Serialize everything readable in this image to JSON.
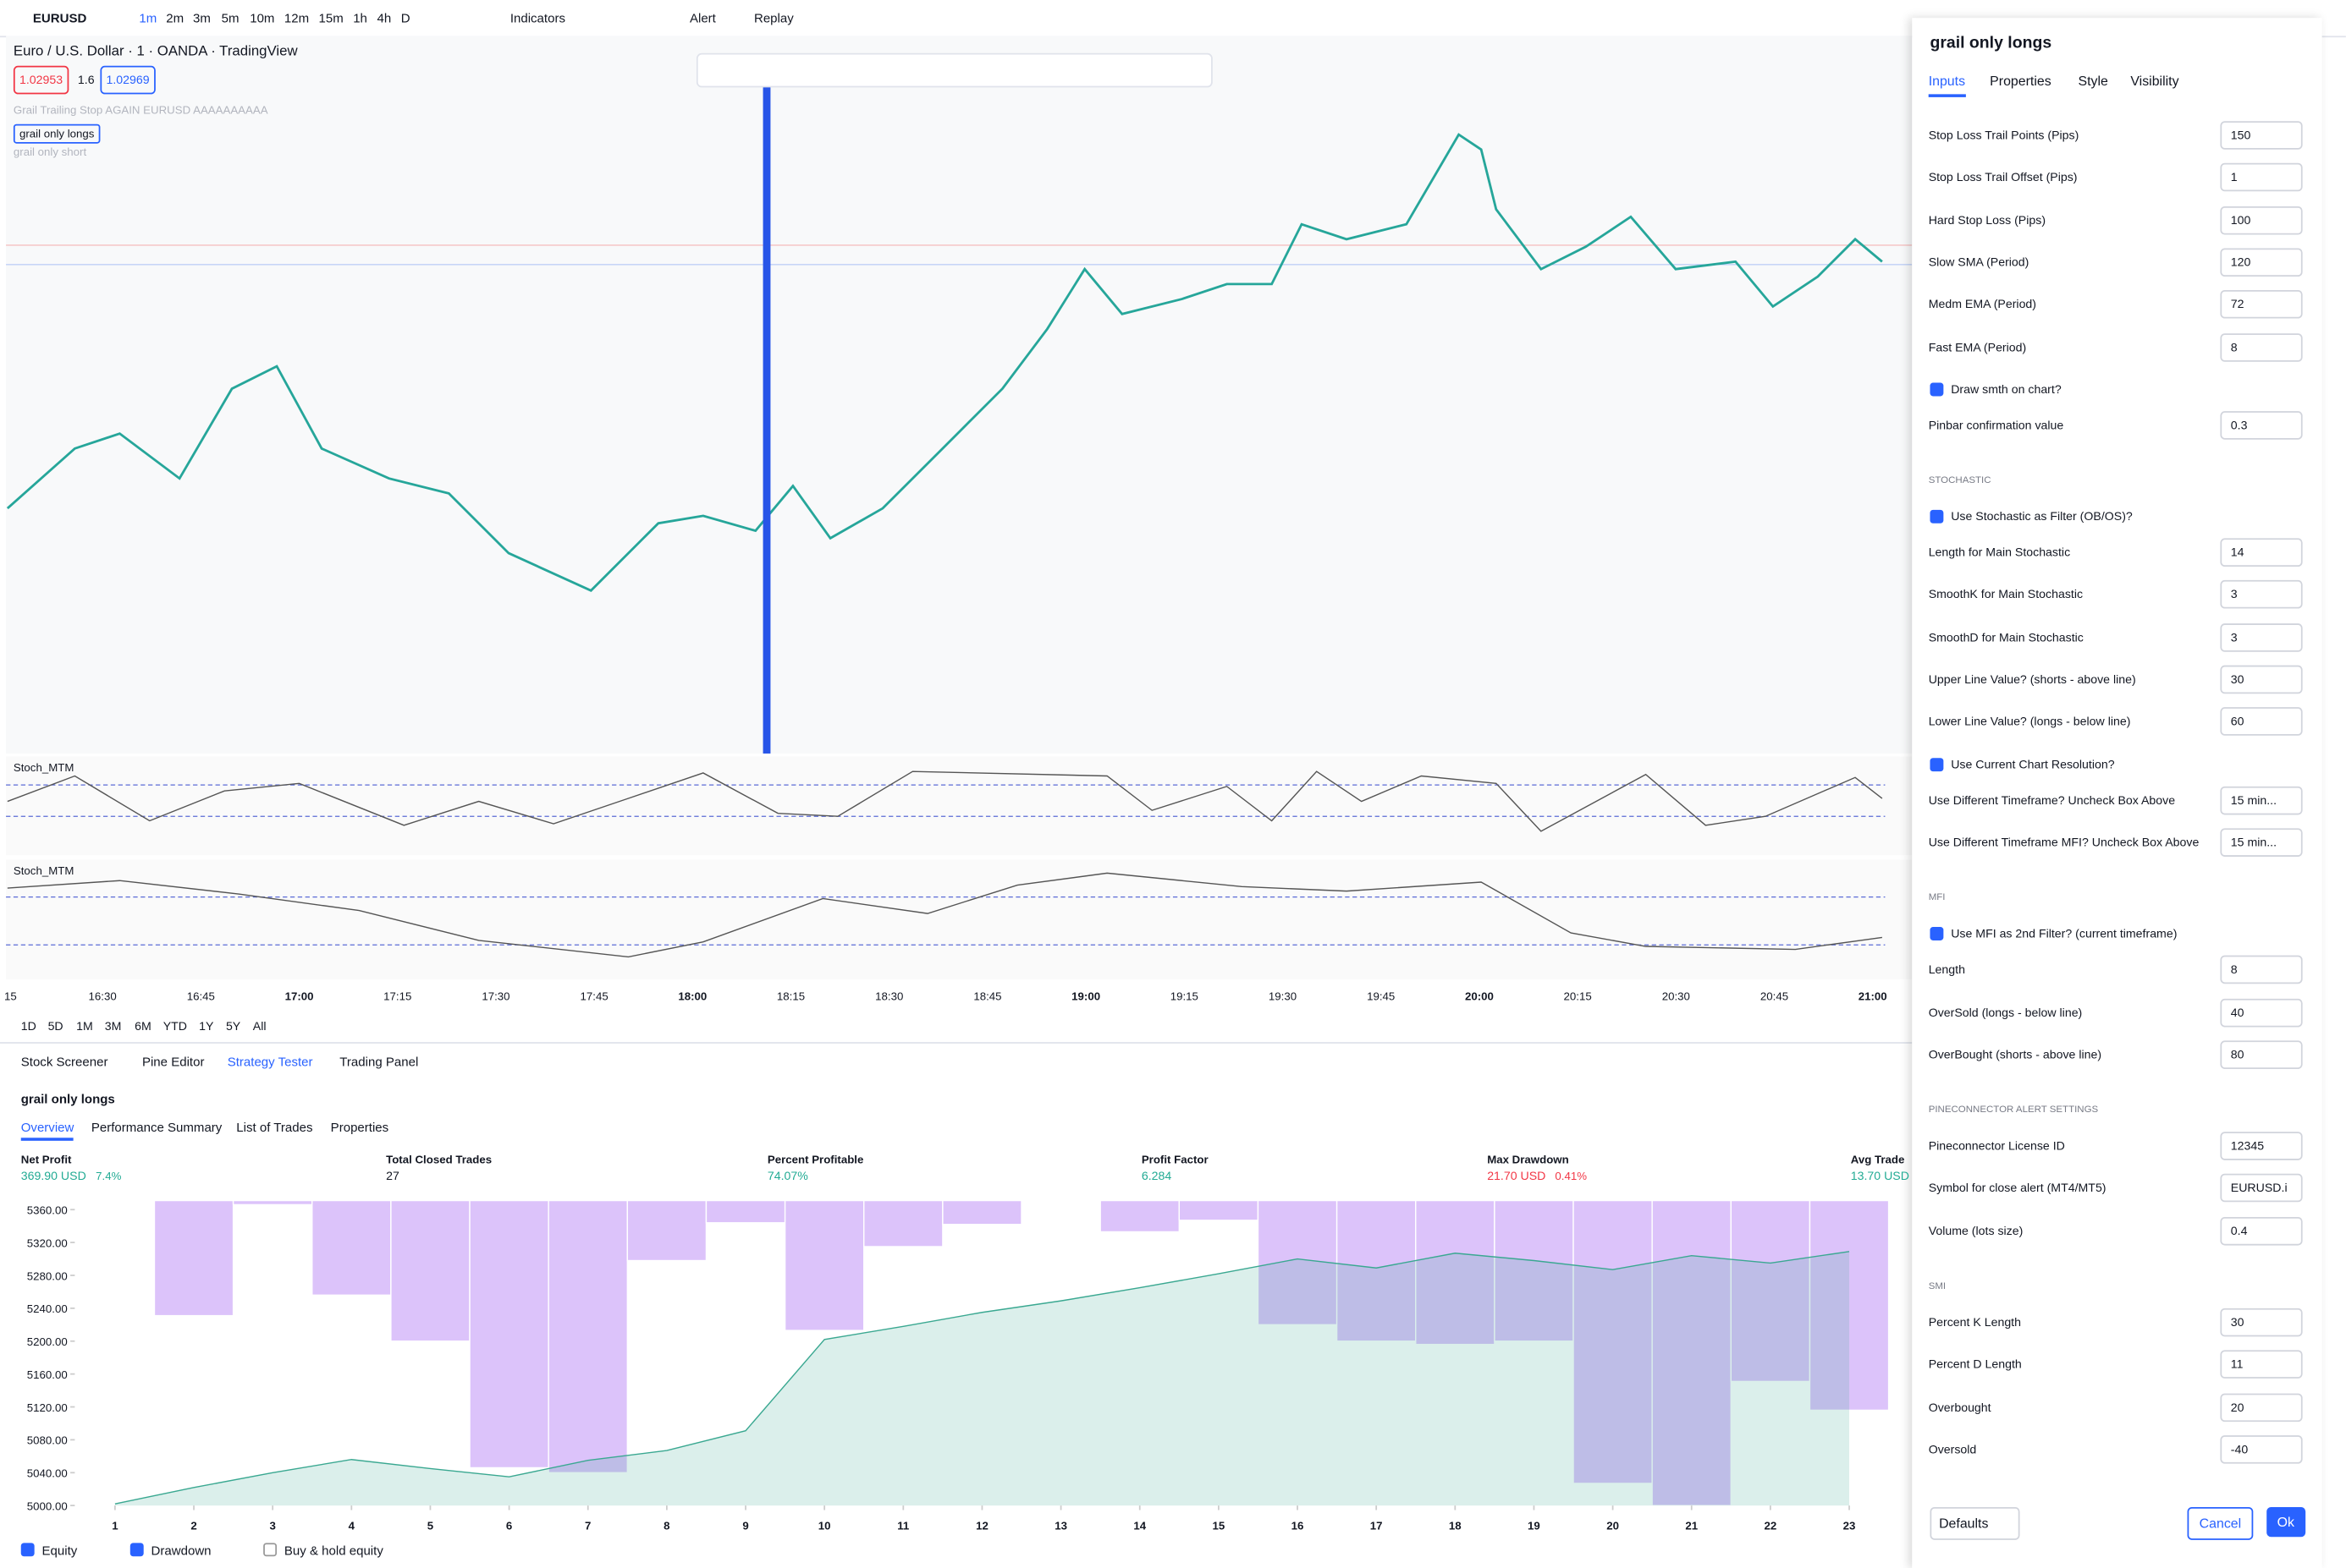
{
  "toolbar": {
    "symbol": "EURUSD",
    "timeframes": [
      "1m",
      "2m",
      "3m",
      "5m",
      "10m",
      "12m",
      "15m",
      "1h",
      "4h",
      "D"
    ],
    "indicators": "Indicators",
    "alert": "Alert",
    "replay": "Replay"
  },
  "chart_header": {
    "title": "Euro / U.S. Dollar · 1 · OANDA · TradingView",
    "bid": "1.02953",
    "spread": "1.6",
    "ask": "1.02969",
    "studies": [
      "Grail Trailing Stop AGAIN EURUSD AAAAAAAAAA",
      "grail only longs",
      "grail only short"
    ],
    "panes": [
      "Stoch_MTM",
      "Stoch_MTM"
    ],
    "time_labels": [
      "15",
      "16:30",
      "16:45",
      "17:00",
      "17:15",
      "17:30",
      "17:45",
      "18:00",
      "18:15",
      "18:30",
      "18:45",
      "19:00",
      "19:15",
      "19:30",
      "19:45",
      "20:00",
      "20:15",
      "20:30",
      "20:45",
      "21:00"
    ],
    "ranges": [
      "1D",
      "5D",
      "1M",
      "3M",
      "6M",
      "YTD",
      "1Y",
      "5Y",
      "All"
    ]
  },
  "bottom_tabs": [
    "Stock Screener",
    "Pine Editor",
    "Strategy Tester",
    "Trading Panel"
  ],
  "tester": {
    "title": "grail only longs",
    "tabs": [
      "Overview",
      "Performance Summary",
      "List of Trades",
      "Properties"
    ],
    "metrics": [
      {
        "label": "Net Profit",
        "value": "369.90 USD",
        "pct": "7.4%",
        "color": "#22ab94"
      },
      {
        "label": "Total Closed Trades",
        "value": "27"
      },
      {
        "label": "Percent Profitable",
        "value": "74.07%",
        "color": "#22ab94"
      },
      {
        "label": "Profit Factor",
        "value": "6.284",
        "color": "#22ab94"
      },
      {
        "label": "Max Drawdown",
        "value": "21.70 USD",
        "pct": "0.41%",
        "color": "#f23645"
      },
      {
        "label": "Avg Trade",
        "value": "13.70 USD",
        "color": "#22ab94"
      }
    ],
    "toggles": [
      "Equity",
      "Drawdown",
      "Buy & hold equity"
    ]
  },
  "chart_data": {
    "type": "area",
    "x": [
      1,
      2,
      3,
      4,
      5,
      6,
      7,
      8,
      9,
      10,
      11,
      12,
      13,
      14,
      15,
      16,
      17,
      18,
      19,
      20,
      21,
      22,
      23
    ],
    "series": [
      {
        "name": "Equity",
        "color": "#3aa891",
        "values": [
          5002,
          5022,
          5040,
          5056,
          5045,
          5035,
          5055,
          5067,
          5091,
          5202,
          5218,
          5235,
          5249,
          5265,
          5282,
          5300,
          5289,
          5307,
          5298,
          5287,
          5304,
          5295,
          5309
        ]
      },
      {
        "name": "Drawdown",
        "color": "#dcc3fa",
        "values": [
          0,
          140,
          5,
          115,
          171,
          325,
          331,
          73,
          27,
          158,
          56,
          29,
          0,
          38,
          24,
          151,
          171,
          175,
          171,
          344,
          371,
          220,
          255
        ]
      }
    ],
    "xlim": [
      0.49,
      23.74
    ],
    "ylim": [
      5000,
      5371
    ],
    "xticks": [
      1,
      2,
      3,
      4,
      5,
      6,
      7,
      8,
      9,
      10,
      11,
      12,
      13,
      14,
      15,
      16,
      17,
      18,
      19,
      20,
      21,
      22,
      23
    ],
    "yticks": [
      {
        "value": 5000,
        "label": "5000.00"
      },
      {
        "value": 5040,
        "label": "5040.00"
      },
      {
        "value": 5080,
        "label": "5080.00"
      },
      {
        "value": 5120,
        "label": "5120.00"
      },
      {
        "value": 5160,
        "label": "5160.00"
      },
      {
        "value": 5200,
        "label": "5200.00"
      },
      {
        "value": 5240,
        "label": "5240.00"
      },
      {
        "value": 5280,
        "label": "5280.00"
      },
      {
        "value": 5320,
        "label": "5320.00"
      },
      {
        "value": 5360,
        "label": "5360.00"
      }
    ]
  },
  "dialog": {
    "title": "grail only longs",
    "tabs": [
      "Inputs",
      "Properties",
      "Style",
      "Visibility"
    ],
    "rows": [
      {
        "label": "Stop Loss Trail Points (Pips)",
        "value": "150"
      },
      {
        "label": "Stop Loss Trail Offset (Pips)",
        "value": "1"
      },
      {
        "label": "Hard Stop Loss (Pips)",
        "value": "100"
      },
      {
        "label": "Slow SMA (Period)",
        "value": "120"
      },
      {
        "label": "Medm EMA (Period)",
        "value": "72"
      },
      {
        "label": "Fast EMA (Period)",
        "value": "8"
      },
      {
        "check": "Draw smth on chart?"
      },
      {
        "label": "Pinbar confirmation value",
        "value": "0.3"
      },
      {
        "section": "STOCHASTIC"
      },
      {
        "check": "Use Stochastic as Filter (OB/OS)?"
      },
      {
        "label": "Length for Main Stochastic",
        "value": "14"
      },
      {
        "label": "SmoothK for Main Stochastic",
        "value": "3"
      },
      {
        "label": "SmoothD for Main Stochastic",
        "value": "3"
      },
      {
        "label": "Upper Line Value? (shorts - above line)",
        "value": "30"
      },
      {
        "label": "Lower Line Value? (longs - below line)",
        "value": "60"
      },
      {
        "check": "Use Current Chart Resolution?"
      },
      {
        "label": "Use Different Timeframe? Uncheck Box Above",
        "select": "15 min..."
      },
      {
        "label": "Use Different Timeframe MFI? Uncheck Box Above",
        "select": "15 min..."
      },
      {
        "section": "MFI"
      },
      {
        "check": "Use MFI as 2nd Filter? (current timeframe)"
      },
      {
        "label": "Length",
        "value": "8"
      },
      {
        "label": "OverSold (longs - below line)",
        "value": "40"
      },
      {
        "label": "OverBought (shorts - above line)",
        "value": "80"
      },
      {
        "section": "PINECONNECTOR ALERT SETTINGS"
      },
      {
        "label": "Pineconnector License ID",
        "value": "12345"
      },
      {
        "label": "Symbol for close alert (MT4/MT5)",
        "value": "EURUSD.i"
      },
      {
        "label": "Volume (lots size)",
        "value": "0.4"
      },
      {
        "section": "SMI"
      },
      {
        "label": "Percent K Length",
        "value": "30"
      },
      {
        "label": "Percent D Length",
        "value": "11"
      },
      {
        "label": "Overbought",
        "value": "20"
      },
      {
        "label": "Oversold",
        "value": "-40"
      }
    ],
    "defaults": "Defaults",
    "cancel": "Cancel",
    "ok": "Ok"
  }
}
